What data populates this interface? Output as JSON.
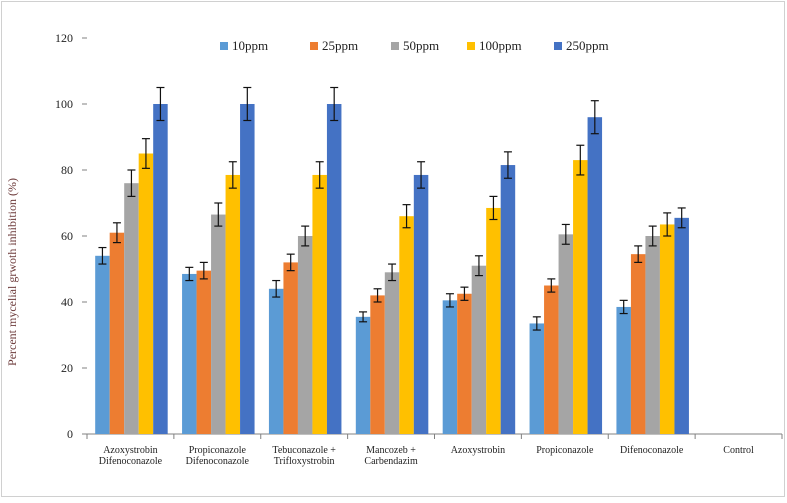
{
  "chart_data": {
    "type": "bar",
    "ylabel": "Percent mycelial grwoth inhibition (%)",
    "ylim": [
      0,
      120
    ],
    "yticks": [
      0,
      20,
      40,
      60,
      80,
      100,
      120
    ],
    "grid": false,
    "legend_position": "top",
    "categories": [
      [
        "Azoxystrobin",
        "Difenoconazole"
      ],
      [
        "Propiconazole",
        "Difenoconazole"
      ],
      [
        "Tebuconazole +",
        "Trifloxystrobin"
      ],
      [
        "Mancozeb +",
        "Carbendazim"
      ],
      [
        "Azoxystrobin"
      ],
      [
        "Propiconazole"
      ],
      [
        "Difenoconazole"
      ],
      [
        "Control"
      ]
    ],
    "series": [
      {
        "name": "10ppm",
        "color": "#5b9bd5",
        "values": [
          54,
          48.5,
          44,
          35.5,
          40.5,
          33.5,
          38.5,
          0
        ],
        "errors": [
          2.5,
          2,
          2.5,
          1.5,
          2,
          2,
          2,
          0
        ]
      },
      {
        "name": "25ppm",
        "color": "#ed7d31",
        "values": [
          61,
          49.5,
          52,
          42,
          42.5,
          45,
          54.5,
          0
        ],
        "errors": [
          3,
          2.5,
          2.5,
          2,
          2,
          2,
          2.5,
          0
        ]
      },
      {
        "name": "50ppm",
        "color": "#a5a5a5",
        "values": [
          76,
          66.5,
          60,
          49,
          51,
          60.5,
          60,
          0
        ],
        "errors": [
          4,
          3.5,
          3,
          2.5,
          3,
          3,
          3,
          0
        ]
      },
      {
        "name": "100ppm",
        "color": "#ffc000",
        "values": [
          85,
          78.5,
          78.5,
          66,
          68.5,
          83,
          63.5,
          0
        ],
        "errors": [
          4.5,
          4,
          4,
          3.5,
          3.5,
          4.5,
          3.5,
          0
        ]
      },
      {
        "name": "250ppm",
        "color": "#4472c4",
        "values": [
          100,
          100,
          100,
          78.5,
          81.5,
          96,
          65.5,
          0
        ],
        "errors": [
          5,
          5,
          5,
          4,
          4,
          5,
          3,
          0
        ]
      }
    ]
  }
}
